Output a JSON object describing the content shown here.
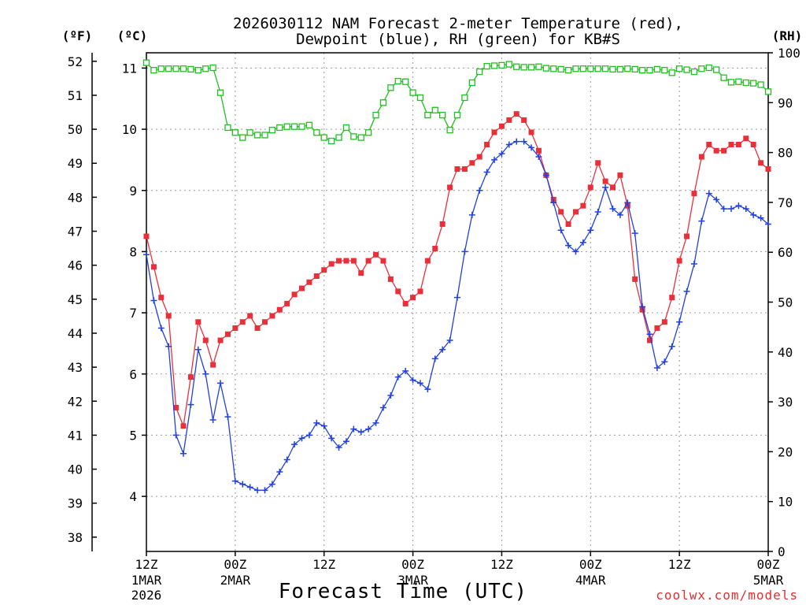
{
  "chart_data": {
    "type": "line",
    "title_line1": "2026030112 NAM Forecast 2-meter Temperature (red),",
    "title_line2": "Dewpoint (blue), RH (green) for KB#S",
    "xlabel": "Forecast Time (UTC)",
    "credit": "coolwx.com/models",
    "left_outer_unit": "(ºF)",
    "left_inner_unit": "(ºC)",
    "right_unit": "(RH)",
    "x_range_hours": [
      0,
      84
    ],
    "x_ticks": [
      {
        "hour": 0,
        "label": "12Z",
        "sub1": "1MAR",
        "sub2": "2026"
      },
      {
        "hour": 12,
        "label": "00Z",
        "sub1": "2MAR",
        "sub2": ""
      },
      {
        "hour": 24,
        "label": "12Z",
        "sub1": "",
        "sub2": ""
      },
      {
        "hour": 36,
        "label": "00Z",
        "sub1": "3MAR",
        "sub2": ""
      },
      {
        "hour": 48,
        "label": "12Z",
        "sub1": "",
        "sub2": ""
      },
      {
        "hour": 60,
        "label": "00Z",
        "sub1": "4MAR",
        "sub2": ""
      },
      {
        "hour": 72,
        "label": "12Z",
        "sub1": "",
        "sub2": ""
      },
      {
        "hour": 84,
        "label": "00Z",
        "sub1": "5MAR",
        "sub2": ""
      }
    ],
    "celsius_ticks": [
      "4",
      "5",
      "6",
      "7",
      "8",
      "9",
      "10",
      "11"
    ],
    "fahrenheit_ticks": [
      "38",
      "39",
      "40",
      "41",
      "42",
      "43",
      "44",
      "45",
      "46",
      "47",
      "48",
      "49",
      "50",
      "51",
      "52"
    ],
    "rh_ticks": [
      "0",
      "10",
      "20",
      "30",
      "40",
      "50",
      "60",
      "70",
      "80",
      "90",
      "100"
    ],
    "ylim_celsius": [
      3.1,
      11.25
    ],
    "ylim_rh": [
      0,
      100
    ],
    "series": [
      {
        "name": "Temperature (red)",
        "unit": "C",
        "color": "#e8303a",
        "marker": "square",
        "values": [
          8.25,
          7.75,
          7.25,
          6.95,
          5.45,
          5.15,
          5.95,
          6.85,
          6.55,
          6.15,
          6.55,
          6.65,
          6.75,
          6.85,
          6.95,
          6.75,
          6.85,
          6.95,
          7.05,
          7.15,
          7.3,
          7.4,
          7.5,
          7.6,
          7.7,
          7.8,
          7.85,
          7.85,
          7.85,
          7.65,
          7.85,
          7.95,
          7.85,
          7.55,
          7.35,
          7.15,
          7.25,
          7.35,
          7.85,
          8.05,
          8.45,
          9.05,
          9.35,
          9.35,
          9.45,
          9.55,
          9.75,
          9.95,
          10.05,
          10.15,
          10.25,
          10.15,
          9.95,
          9.65,
          9.25,
          8.85,
          8.65,
          8.45,
          8.65,
          8.75,
          9.05,
          9.45,
          9.15,
          9.05,
          9.25,
          8.75,
          7.55,
          7.05,
          6.55,
          6.75,
          6.85,
          7.25,
          7.85,
          8.25,
          8.95,
          9.55,
          9.75,
          9.65,
          9.65,
          9.75,
          9.75,
          9.85,
          9.75,
          9.45,
          9.35
        ]
      },
      {
        "name": "Dewpoint (blue)",
        "unit": "C",
        "color": "#2040e0",
        "marker": "plus",
        "values": [
          7.95,
          7.2,
          6.75,
          6.45,
          5.0,
          4.7,
          5.5,
          6.4,
          6.0,
          5.25,
          5.85,
          5.3,
          4.25,
          4.2,
          4.15,
          4.1,
          4.1,
          4.2,
          4.4,
          4.6,
          4.85,
          4.95,
          5.0,
          5.2,
          5.15,
          4.95,
          4.8,
          4.9,
          5.1,
          5.05,
          5.1,
          5.2,
          5.45,
          5.65,
          5.95,
          6.05,
          5.9,
          5.85,
          5.75,
          6.25,
          6.4,
          6.55,
          7.25,
          8.0,
          8.6,
          9.0,
          9.3,
          9.5,
          9.6,
          9.75,
          9.8,
          9.8,
          9.7,
          9.55,
          9.25,
          8.8,
          8.35,
          8.1,
          8.0,
          8.15,
          8.35,
          8.65,
          9.05,
          8.7,
          8.6,
          8.8,
          8.3,
          7.1,
          6.65,
          6.1,
          6.2,
          6.45,
          6.85,
          7.35,
          7.8,
          8.5,
          8.95,
          8.85,
          8.7,
          8.7,
          8.75,
          8.7,
          8.6,
          8.55,
          8.45
        ]
      },
      {
        "name": "RH (green)",
        "unit": "%",
        "color": "#20c020",
        "marker": "open-square",
        "values": [
          98,
          96.5,
          96.8,
          96.8,
          96.8,
          96.8,
          96.7,
          96.5,
          96.8,
          97,
          92,
          85,
          84,
          83,
          84,
          83.5,
          83.5,
          84.5,
          85,
          85.2,
          85.2,
          85.2,
          85.5,
          84,
          83,
          82.3,
          83,
          85,
          83.2,
          83,
          84,
          87.5,
          90,
          93,
          94.3,
          94.2,
          92,
          91,
          87.5,
          88.5,
          87.5,
          84.5,
          87.5,
          91,
          94,
          96.2,
          97.3,
          97.4,
          97.5,
          97.7,
          97.2,
          97.1,
          97.1,
          97.2,
          96.9,
          96.8,
          96.7,
          96.5,
          96.8,
          96.8,
          96.8,
          96.8,
          96.8,
          96.7,
          96.7,
          96.8,
          96.7,
          96.5,
          96.5,
          96.7,
          96.5,
          96,
          96.8,
          96.6,
          96.2,
          96.8,
          97,
          96.6,
          95,
          94.1,
          94.2,
          94,
          93.9,
          93.6,
          92.2
        ]
      }
    ]
  }
}
